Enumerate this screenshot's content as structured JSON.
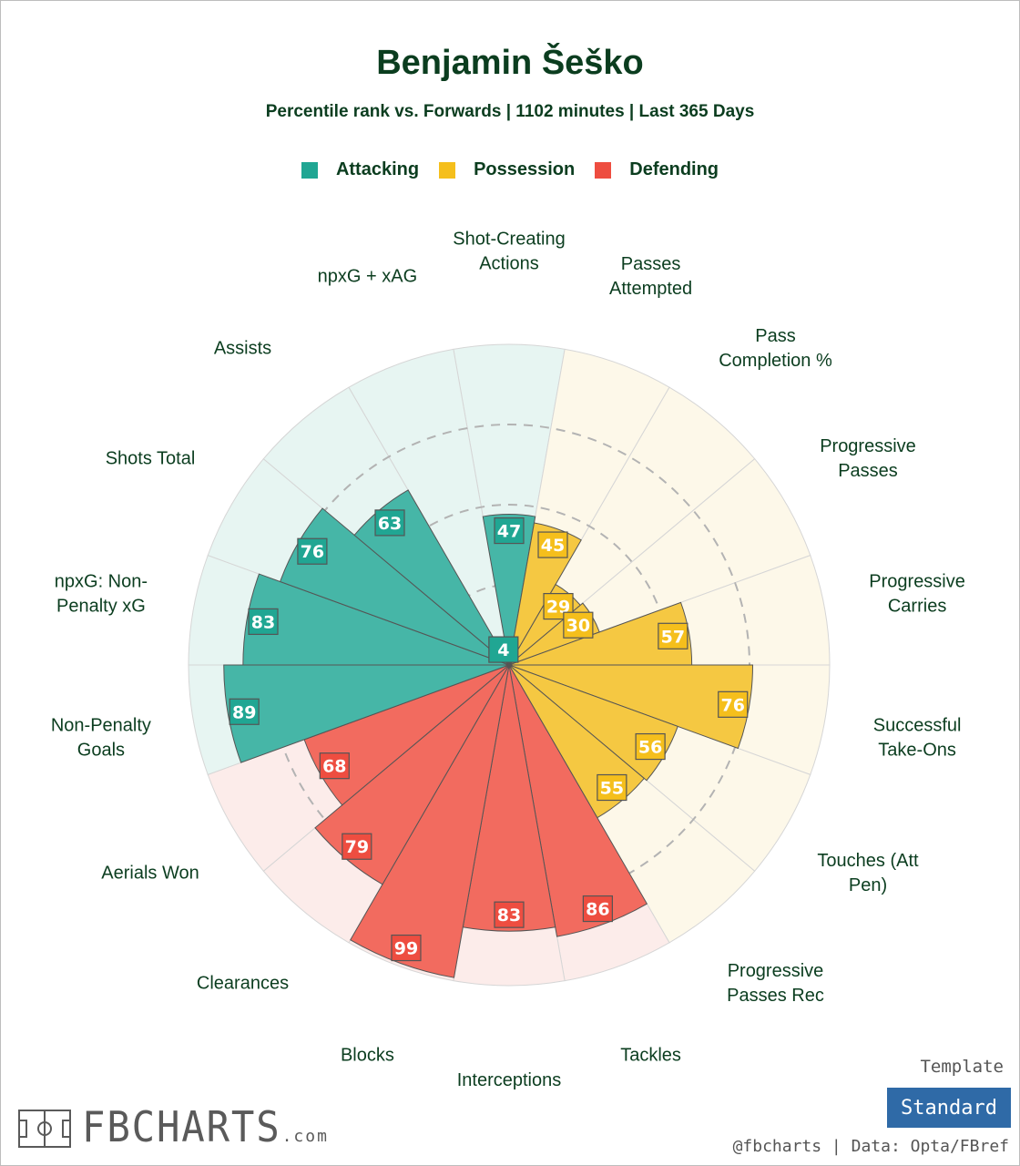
{
  "header": {
    "title": "Benjamin Šeško",
    "subtitle": "Percentile rank vs. Forwards | 1102 minutes | Last 365 Days"
  },
  "legend": [
    {
      "label": "Attacking",
      "color": "#20a693"
    },
    {
      "label": "Possession",
      "color": "#f5bf1c"
    },
    {
      "label": "Defending",
      "color": "#ee4d40"
    }
  ],
  "chart_data": {
    "type": "polar-bar",
    "value_range": [
      0,
      100
    ],
    "grid": "dashed rings at 25, 50, 75",
    "series": [
      {
        "name": "Attacking",
        "color": "#20a693",
        "bar_color": "#46b6a7",
        "bg_color": "#e7f5f2",
        "label_box": "#20a693",
        "label_text": "#ffffff"
      },
      {
        "name": "Possession",
        "color": "#f5bf1c",
        "bar_color": "#f5c842",
        "bg_color": "#fdf8e9",
        "label_box": "#f5bf1c",
        "label_text": "#ffffff"
      },
      {
        "name": "Defending",
        "color": "#ee4d40",
        "bar_color": "#f26b5f",
        "bg_color": "#fcecea",
        "label_box": "#ee4d40",
        "label_text": "#ffffff"
      }
    ],
    "stats": [
      {
        "label": "Shot-Creating\nActions",
        "value": 47,
        "group": "Attacking"
      },
      {
        "label": "Passes\nAttempted",
        "value": 45,
        "group": "Possession"
      },
      {
        "label": "Pass\nCompletion %",
        "value": 29,
        "group": "Possession"
      },
      {
        "label": "Progressive\nPasses",
        "value": 30,
        "group": "Possession"
      },
      {
        "label": "Progressive\nCarries",
        "value": 57,
        "group": "Possession"
      },
      {
        "label": "Successful\nTake-Ons",
        "value": 76,
        "group": "Possession"
      },
      {
        "label": "Touches (Att\nPen)",
        "value": 56,
        "group": "Possession"
      },
      {
        "label": "Progressive\nPasses Rec",
        "value": 55,
        "group": "Possession"
      },
      {
        "label": "Tackles",
        "value": 86,
        "group": "Defending"
      },
      {
        "label": "Interceptions",
        "value": 83,
        "group": "Defending"
      },
      {
        "label": "Blocks",
        "value": 99,
        "group": "Defending"
      },
      {
        "label": "Clearances",
        "value": 79,
        "group": "Defending"
      },
      {
        "label": "Aerials Won",
        "value": 68,
        "group": "Defending"
      },
      {
        "label": "Non-Penalty\nGoals",
        "value": 89,
        "group": "Attacking"
      },
      {
        "label": "npxG: Non-\nPenalty xG",
        "value": 83,
        "group": "Attacking"
      },
      {
        "label": "Shots Total",
        "value": 76,
        "group": "Attacking"
      },
      {
        "label": "Assists",
        "value": 63,
        "group": "Attacking"
      },
      {
        "label": "npxG + xAG",
        "value": 4,
        "group": "Attacking"
      }
    ]
  },
  "footer": {
    "template_label": "Template",
    "template_value": "Standard",
    "credit": "@fbcharts | Data: Opta/FBref",
    "logo_text": "FBCHARTS",
    "logo_suffix": ".com",
    "logo_icon": "soccer-pitch-icon"
  }
}
